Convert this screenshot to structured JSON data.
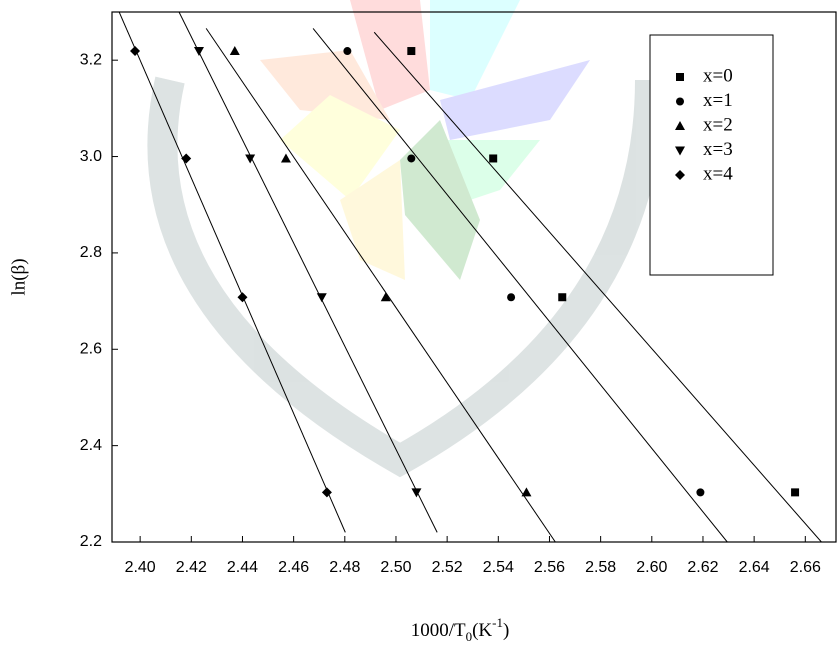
{
  "chart_data": {
    "type": "scatter",
    "xlabel_parts": [
      "1000/T",
      "0",
      "(K",
      "-1",
      ")"
    ],
    "ylabel": "ln(β)",
    "xlim": [
      2.389,
      2.672
    ],
    "ylim": [
      2.2,
      3.3
    ],
    "xticks": [
      {
        "value": 2.4,
        "label": "2.40"
      },
      {
        "value": 2.42,
        "label": "2.42"
      },
      {
        "value": 2.44,
        "label": "2.44"
      },
      {
        "value": 2.46,
        "label": "2.46"
      },
      {
        "value": 2.48,
        "label": "2.48"
      },
      {
        "value": 2.5,
        "label": "2.50"
      },
      {
        "value": 2.52,
        "label": "2.52"
      },
      {
        "value": 2.54,
        "label": "2.54"
      },
      {
        "value": 2.56,
        "label": "2.56"
      },
      {
        "value": 2.58,
        "label": "2.58"
      },
      {
        "value": 2.6,
        "label": "2.60"
      },
      {
        "value": 2.62,
        "label": "2.62"
      },
      {
        "value": 2.64,
        "label": "2.64"
      },
      {
        "value": 2.66,
        "label": "2.66"
      }
    ],
    "yticks": [
      2.2,
      2.4,
      2.6,
      2.8,
      {
        "value": 3.0,
        "label": "3.0"
      },
      3.2
    ],
    "series": [
      {
        "name": "x=0",
        "marker": "square",
        "color": "#000000",
        "x": [
          2.506,
          2.538,
          2.565,
          2.656
        ],
        "values": [
          3.219,
          2.996,
          2.708,
          2.303
        ],
        "fit": {
          "x": [
            2.4915,
            2.6663
          ],
          "values": [
            3.258,
            2.2
          ]
        }
      },
      {
        "name": "x=1",
        "marker": "circle",
        "color": "#000000",
        "x": [
          2.481,
          2.506,
          2.545,
          2.619
        ],
        "values": [
          3.219,
          2.996,
          2.708,
          2.303
        ],
        "fit": {
          "x": [
            2.4676,
            2.6295
          ],
          "values": [
            3.266,
            2.2
          ]
        }
      },
      {
        "name": "x=2",
        "marker": "triangle-up",
        "color": "#000000",
        "x": [
          2.437,
          2.457,
          2.496,
          2.551
        ],
        "values": [
          3.219,
          2.996,
          2.708,
          2.303
        ],
        "fit": {
          "x": [
            2.4258,
            2.5623
          ],
          "values": [
            3.266,
            2.2
          ]
        }
      },
      {
        "name": "x=3",
        "marker": "triangle-down",
        "color": "#000000",
        "x": [
          2.423,
          2.443,
          2.471,
          2.508
        ],
        "values": [
          3.219,
          2.996,
          2.708,
          2.303
        ],
        "fit": {
          "x": [
            2.4152,
            2.5161
          ],
          "values": [
            3.3,
            2.22
          ]
        }
      },
      {
        "name": "x=4",
        "marker": "diamond",
        "color": "#000000",
        "x": [
          2.398,
          2.418,
          2.44,
          2.473
        ],
        "values": [
          3.219,
          2.996,
          2.708,
          2.303
        ],
        "fit": {
          "x": [
            2.3918,
            2.4802
          ],
          "values": [
            3.3,
            2.22
          ]
        }
      }
    ]
  }
}
